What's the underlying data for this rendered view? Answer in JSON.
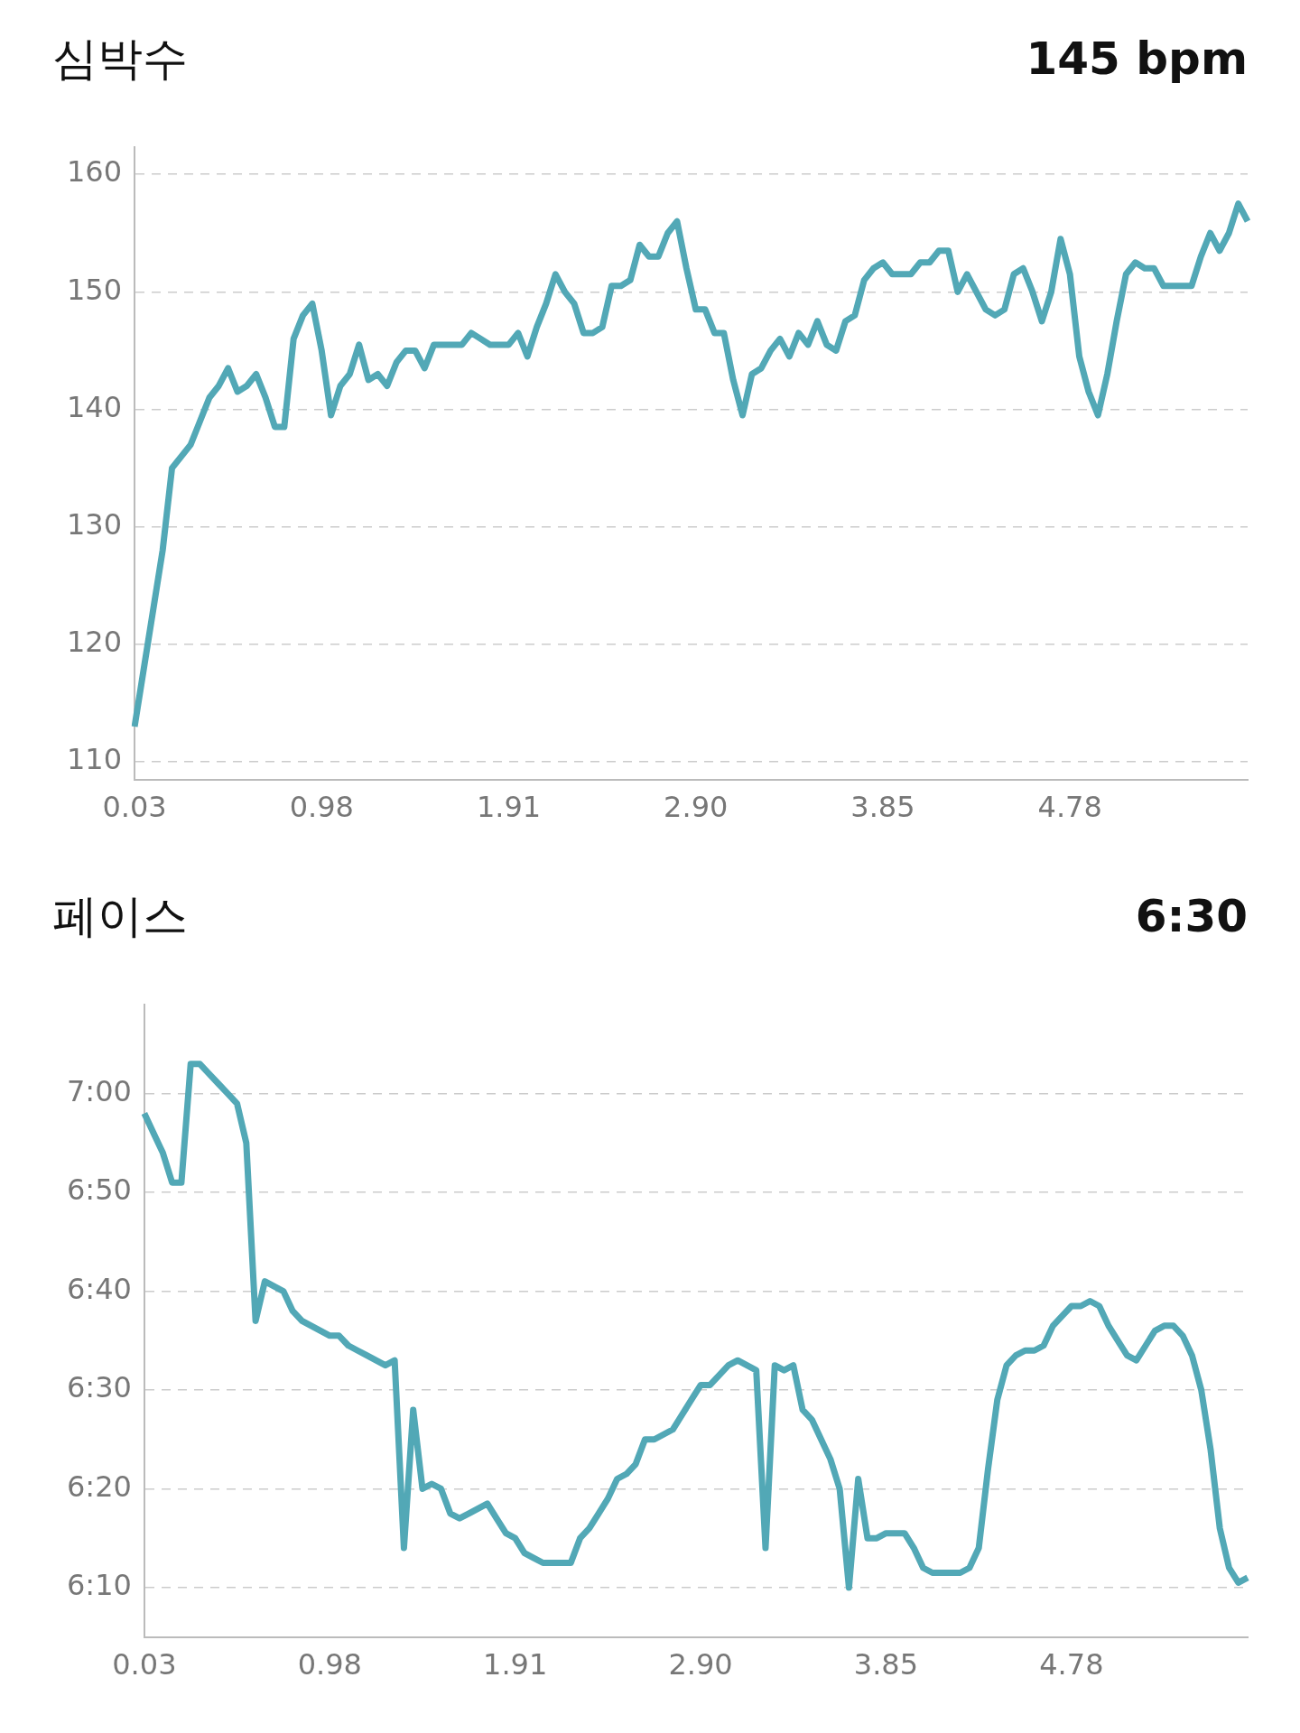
{
  "chart_data": [
    {
      "type": "line",
      "title": "심박수",
      "annotations": [
        "145 bpm"
      ],
      "categories": [
        "0.03",
        null,
        null,
        null,
        null,
        null,
        null,
        null,
        null,
        null,
        null,
        null,
        null,
        null,
        null,
        null,
        null,
        null,
        null,
        null,
        "0.98",
        null,
        null,
        null,
        null,
        null,
        null,
        null,
        null,
        null,
        null,
        null,
        null,
        null,
        null,
        null,
        null,
        null,
        null,
        null,
        "1.91",
        null,
        null,
        null,
        null,
        null,
        null,
        null,
        null,
        null,
        null,
        null,
        null,
        null,
        null,
        null,
        null,
        null,
        null,
        null,
        "2.90",
        null,
        null,
        null,
        null,
        null,
        null,
        null,
        null,
        null,
        null,
        null,
        null,
        null,
        null,
        null,
        null,
        null,
        null,
        null,
        "3.85",
        null,
        null,
        null,
        null,
        null,
        null,
        null,
        null,
        null,
        null,
        null,
        null,
        null,
        null,
        null,
        null,
        null,
        null,
        null,
        "4.78",
        null,
        null,
        null,
        null,
        null,
        null,
        null,
        null,
        null,
        null,
        null,
        null,
        null,
        null,
        null,
        null,
        null,
        null,
        null
      ],
      "series": [
        {
          "color": "#52a8b6",
          "values": [
            113,
            118,
            123,
            128,
            135,
            136,
            137,
            139,
            141,
            142,
            143.5,
            141.5,
            142,
            143,
            141,
            138.5,
            138.5,
            146,
            148,
            149,
            145,
            139.5,
            142,
            143,
            145.5,
            142.5,
            143,
            142,
            144,
            145,
            145,
            143.5,
            145.5,
            145.5,
            145.5,
            145.5,
            146.5,
            146,
            145.5,
            145.5,
            145.5,
            146.5,
            144.5,
            147,
            149,
            151.5,
            150,
            149,
            146.5,
            146.5,
            147,
            150.5,
            150.5,
            151,
            154,
            153,
            153,
            155,
            156,
            152,
            148.5,
            148.5,
            146.5,
            146.5,
            142.5,
            139.5,
            143,
            143.5,
            145,
            146,
            144.5,
            146.5,
            145.5,
            147.5,
            145.5,
            145,
            147.5,
            148,
            151,
            152,
            152.5,
            151.5,
            151.5,
            151.5,
            152.5,
            152.5,
            153.5,
            153.5,
            150,
            151.5,
            150,
            148.5,
            148,
            148.5,
            151.5,
            152,
            150,
            147.5,
            150,
            154.5,
            151.5,
            144.5,
            141.5,
            139.5,
            143,
            147.5,
            151.5,
            152.5,
            152,
            152,
            150.5,
            150.5,
            150.5,
            150.5,
            153,
            155,
            153.5,
            155,
            157.5,
            156
          ]
        }
      ],
      "ylim": [
        108.5,
        162.3
      ],
      "yticks": [
        110,
        120,
        130,
        140,
        150,
        160
      ],
      "grid": "y"
    },
    {
      "type": "line",
      "title": "페이스",
      "annotations": [
        "6:30"
      ],
      "categories": [
        "0.03",
        null,
        null,
        null,
        null,
        null,
        null,
        null,
        null,
        null,
        null,
        null,
        null,
        null,
        null,
        null,
        null,
        null,
        null,
        null,
        "0.98",
        null,
        null,
        null,
        null,
        null,
        null,
        null,
        null,
        null,
        null,
        null,
        null,
        null,
        null,
        null,
        null,
        null,
        null,
        null,
        "1.91",
        null,
        null,
        null,
        null,
        null,
        null,
        null,
        null,
        null,
        null,
        null,
        null,
        null,
        null,
        null,
        null,
        null,
        null,
        null,
        "2.90",
        null,
        null,
        null,
        null,
        null,
        null,
        null,
        null,
        null,
        null,
        null,
        null,
        null,
        null,
        null,
        null,
        null,
        null,
        null,
        "3.85",
        null,
        null,
        null,
        null,
        null,
        null,
        null,
        null,
        null,
        null,
        null,
        null,
        null,
        null,
        null,
        null,
        null,
        null,
        null,
        "4.78",
        null,
        null,
        null,
        null,
        null,
        null,
        null,
        null,
        null,
        null,
        null,
        null,
        null,
        null,
        null,
        null,
        null,
        null,
        null
      ],
      "series": [
        {
          "color": "#52a8b6",
          "values": [
            418,
            416,
            414,
            411,
            411,
            423,
            423,
            422,
            421,
            420,
            419,
            415,
            397,
            401,
            400.5,
            400,
            398,
            397,
            396.5,
            396,
            395.5,
            395.5,
            394.5,
            394,
            393.5,
            393,
            392.5,
            393,
            374,
            388,
            380,
            380.5,
            380,
            377.5,
            377,
            377.5,
            378,
            378.5,
            377,
            375.5,
            375,
            373.5,
            373,
            372.5,
            372.5,
            372.5,
            372.5,
            375,
            376,
            377.5,
            379,
            381,
            381.5,
            382.5,
            385,
            385,
            385.5,
            386,
            387.5,
            389,
            390.5,
            390.5,
            391.5,
            392.5,
            393,
            392.5,
            392,
            374,
            392.5,
            392,
            392.5,
            388,
            387,
            385,
            383,
            380,
            370,
            381,
            375,
            375,
            375.5,
            375.5,
            375.5,
            374,
            372,
            371.5,
            371.5,
            371.5,
            371.5,
            372,
            374,
            382,
            389,
            392.5,
            393.5,
            394,
            394,
            394.5,
            396.5,
            397.5,
            398.5,
            398.5,
            399,
            398.5,
            396.5,
            395,
            393.5,
            393,
            394.5,
            396,
            396.5,
            396.5,
            395.5,
            393.5,
            390,
            384,
            376,
            372,
            370.5,
            371
          ]
        }
      ],
      "ylim": [
        365,
        429
      ],
      "yticks": [
        {
          "value": 370,
          "label": "6:10"
        },
        {
          "value": 380,
          "label": "6:20"
        },
        {
          "value": 390,
          "label": "6:30"
        },
        {
          "value": 400,
          "label": "6:40"
        },
        {
          "value": 410,
          "label": "6:50"
        },
        {
          "value": 420,
          "label": "7:00"
        }
      ],
      "grid": "y"
    }
  ]
}
